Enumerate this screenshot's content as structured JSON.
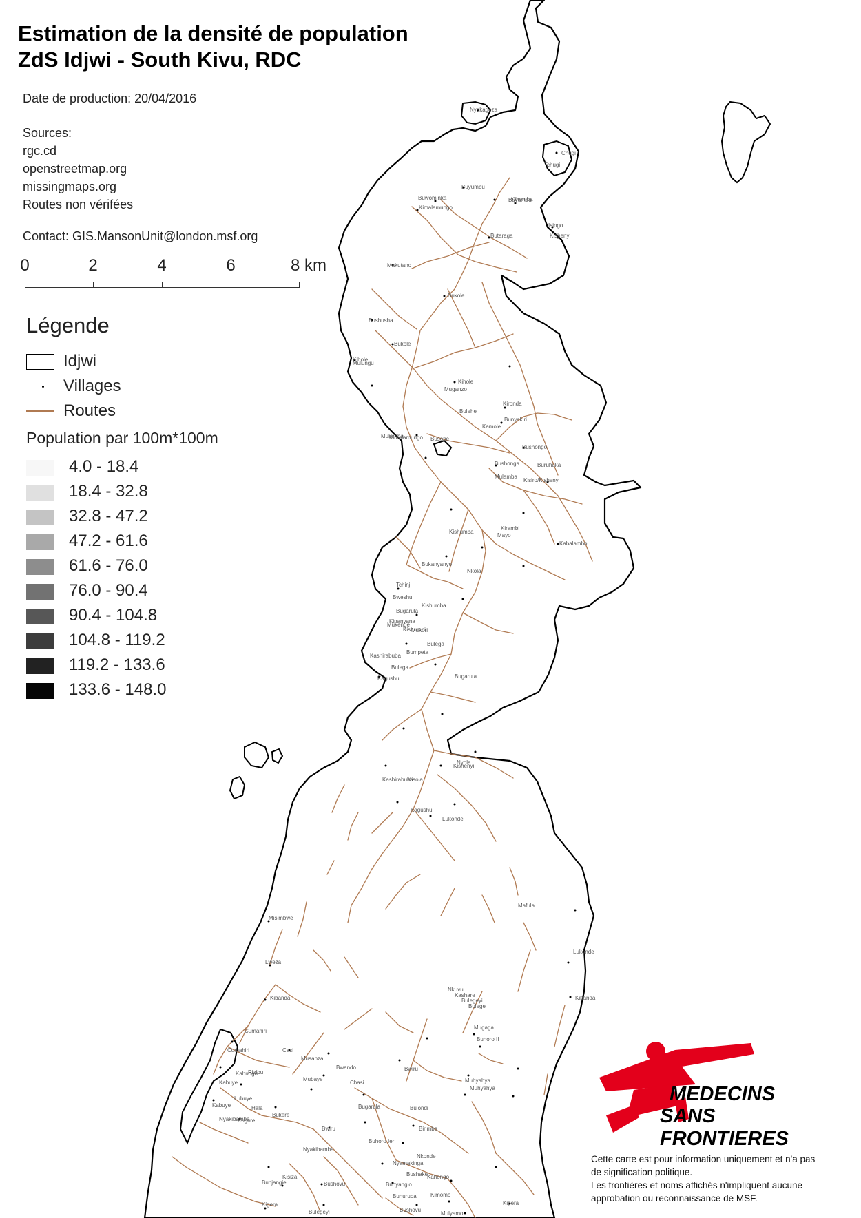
{
  "title": {
    "line1": "Estimation de la densité de population",
    "line2": "ZdS Idjwi - South Kivu, RDC"
  },
  "production_date": "Date de production: 20/04/2016",
  "sources": {
    "heading": "Sources:",
    "items": [
      "rgc.cd",
      "openstreetmap.org",
      "missingmaps.org",
      "Routes non vérifées"
    ]
  },
  "contact": "Contact: GIS.MansonUnit@london.msf.org",
  "scale": {
    "ticks": [
      "0",
      "2",
      "4",
      "6"
    ],
    "last_tick": "8 km"
  },
  "legend": {
    "title": "Légende",
    "items": [
      {
        "label": "Idjwi",
        "symbol": "outline-box"
      },
      {
        "label": "Villages",
        "symbol": "dot"
      },
      {
        "label": "Routes",
        "symbol": "line",
        "color": "#b07a52"
      }
    ],
    "density_title": "Population par 100m*100m",
    "classes": [
      {
        "label": "4.0 - 18.4",
        "color": "#f7f7f7"
      },
      {
        "label": "18.4 - 32.8",
        "color": "#e0e0e0"
      },
      {
        "label": "32.8 - 47.2",
        "color": "#c4c4c4"
      },
      {
        "label": "47.2 - 61.6",
        "color": "#a9a9a9"
      },
      {
        "label": "61.6 - 76.0",
        "color": "#8d8d8d"
      },
      {
        "label": "76.0 - 90.4",
        "color": "#727272"
      },
      {
        "label": "90.4 - 104.8",
        "color": "#575757"
      },
      {
        "label": "104.8 - 119.2",
        "color": "#3c3c3c"
      },
      {
        "label": "119.2 - 133.6",
        "color": "#222222"
      },
      {
        "label": "133.6 - 148.0",
        "color": "#050505"
      }
    ]
  },
  "logo": {
    "line1": "MEDECINS",
    "line2": "SANS FRONTIERES",
    "color": "#e3001b"
  },
  "disclaimer": [
    "Cette carte est pour information uniquement et n'a pas",
    "de signification politique.",
    "Les frontières et noms affichés n'impliquent aucune",
    "approbation ou reconnaissance de MSF."
  ],
  "villages": [
    "Nyakageza",
    "Chugi",
    "Tchugi",
    "Buyumbu",
    "Buwominka",
    "Kimalamungo",
    "Buyumbu",
    "Kihumba",
    "Isingo",
    "Kishenyi",
    "Butaraga",
    "Makutano",
    "Bukole",
    "Bushusha",
    "Bukole",
    "Kihole",
    "Mulungu",
    "Kihole",
    "Muganzo",
    "Kironda",
    "Bulehe",
    "Bunyakiri",
    "Mulamba",
    "Kamole",
    "Kimalamungo",
    "Bushongo",
    "Buruhuka",
    "Kisiro/Kishenyi",
    "Busobe",
    "Mulamba",
    "Kirambi",
    "Bushonga",
    "Kishumba",
    "Mayo",
    "Kabalambo",
    "Bukanyanyo",
    "Nkola",
    "Tchinji",
    "Bweshu",
    "Kishumba",
    "Kinanyana",
    "Kishumbi",
    "Mukenge",
    "Mukori",
    "Bugarula",
    "Bumpeta",
    "Bugarula",
    "Kashirabuba",
    "Bulega",
    "Kagushu",
    "Bulega",
    "Nyola",
    "Kashirabuba",
    "Kisola",
    "Kishenyi",
    "Kagushu",
    "Lukonde",
    "Mafula",
    "Misimbwe",
    "Lukonde",
    "Lweza",
    "Kibanda",
    "Kibanda",
    "Mugaga",
    "Cumahiri",
    "Buhoro II",
    "Cumahiri",
    "Casi",
    "Musanza",
    "Rizibu",
    "Bwando",
    "Bwiru",
    "Kahungu",
    "Mubaye",
    "Muhyahya",
    "Kabuye",
    "Chasi",
    "Muhyahya",
    "Lubuye",
    "Hala",
    "Kabuye",
    "Bugarula",
    "Bukere",
    "Bulondi",
    "Nyakibamba",
    "Kugote",
    "Bwiru",
    "Buhoro Ier",
    "Birimba",
    "Nyakibamba",
    "Nkonde",
    "Nyamakinga",
    "Kisiza",
    "Bunjangie",
    "Bushake",
    "Kahongo",
    "Bushovu",
    "Bunyangio",
    "Buhuruba",
    "Kimomo",
    "Kigera",
    "Kigera",
    "Bulegeyi",
    "Bushovu",
    "Mulyamo",
    "Nkuvu",
    "Kashare",
    "Bulegeyi",
    "Bulege"
  ]
}
